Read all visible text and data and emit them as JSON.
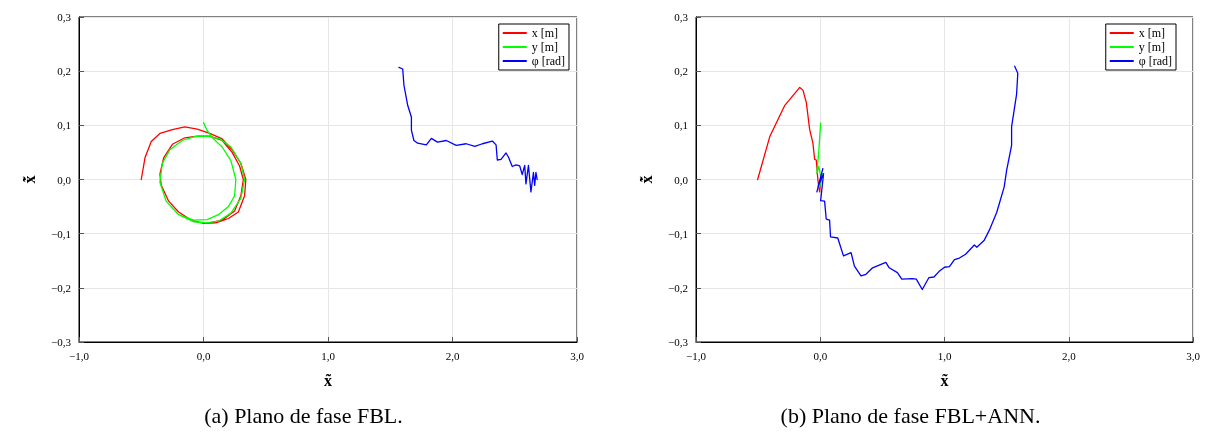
{
  "chart_data": [
    {
      "type": "line",
      "title": "(a) Plano de fase FBL.",
      "xlabel": "x̃",
      "ylabel": "x̃̇",
      "legend": "top right",
      "grid": true,
      "marker": "none",
      "line_style": "solid",
      "xlim": [
        -1,
        3
      ],
      "ylim": [
        -0.3,
        0.3
      ],
      "xticks": [
        {
          "value": -1,
          "label": "−1,0"
        },
        {
          "value": 0,
          "label": "0,0"
        },
        {
          "value": 1,
          "label": "1,0"
        },
        {
          "value": 2,
          "label": "2,0"
        },
        {
          "value": 3,
          "label": "3,0"
        }
      ],
      "yticks": [
        {
          "value": -0.3,
          "label": "−0,3"
        },
        {
          "value": -0.2,
          "label": "−0,2"
        },
        {
          "value": -0.1,
          "label": "−0,1"
        },
        {
          "value": 0,
          "label": "0,0"
        },
        {
          "value": 0.1,
          "label": "0,1"
        },
        {
          "value": 0.2,
          "label": "0,2"
        },
        {
          "value": 0.3,
          "label": "0,3"
        }
      ],
      "series": [
        {
          "name": "x [m]",
          "color": "#ff0000",
          "x": [
            -0.5,
            -0.47,
            -0.42,
            -0.35,
            -0.25,
            -0.15,
            -0.05,
            0.05,
            0.15,
            0.23,
            0.3,
            0.34,
            0.33,
            0.28,
            0.2,
            0.1,
            0,
            -0.1,
            -0.2,
            -0.28,
            -0.34,
            -0.35,
            -0.32,
            -0.25,
            -0.15,
            -0.05,
            0.05,
            0.15,
            0.23,
            0.29,
            0.32,
            0.3,
            0.25,
            0.15,
            0.05
          ],
          "values": [
            0,
            0.04,
            0.07,
            0.085,
            0.092,
            0.097,
            0.093,
            0.085,
            0.075,
            0.055,
            0.03,
            0,
            -0.03,
            -0.06,
            -0.072,
            -0.08,
            -0.081,
            -0.075,
            -0.06,
            -0.04,
            -0.01,
            0.01,
            0.04,
            0.065,
            0.077,
            0.08,
            0.08,
            0.072,
            0.05,
            0.025,
            0,
            -0.03,
            -0.058,
            -0.075,
            -0.08
          ]
        },
        {
          "name": "y [m]",
          "color": "#00ff00",
          "x": [
            0,
            0.03,
            0.08,
            0.15,
            0.22,
            0.26,
            0.25,
            0.2,
            0.12,
            0.03,
            -0.08,
            -0.2,
            -0.3,
            -0.35,
            -0.33,
            -0.27,
            -0.17,
            -0.07,
            0.03,
            0.13,
            0.22,
            0.3,
            0.33,
            0.3,
            0.22,
            0.12,
            0.02,
            -0.08,
            -0.2
          ],
          "values": [
            0.105,
            0.09,
            0.075,
            0.06,
            0.035,
            0,
            -0.03,
            -0.05,
            -0.065,
            -0.074,
            -0.075,
            -0.065,
            -0.04,
            -0.005,
            0.03,
            0.055,
            0.072,
            0.079,
            0.08,
            0.075,
            0.06,
            0.03,
            0,
            -0.035,
            -0.062,
            -0.077,
            -0.08,
            -0.078,
            -0.065
          ]
        },
        {
          "name": "φ [rad]",
          "color": "#0000ff",
          "x": [
            1.57,
            1.6,
            1.61,
            1.64,
            1.67,
            1.67,
            1.69,
            1.72,
            1.79,
            1.83,
            1.88,
            1.95,
            2.03,
            2.11,
            2.18,
            2.24,
            2.32,
            2.35,
            2.36,
            2.39,
            2.43,
            2.45,
            2.48,
            2.51,
            2.54,
            2.56,
            2.58,
            2.59,
            2.61,
            2.63,
            2.65,
            2.66,
            2.67,
            2.68
          ],
          "values": [
            0.207,
            0.204,
            0.174,
            0.137,
            0.115,
            0.091,
            0.072,
            0.067,
            0.064,
            0.076,
            0.069,
            0.072,
            0.063,
            0.066,
            0.061,
            0.066,
            0.071,
            0.064,
            0.036,
            0.037,
            0.049,
            0.041,
            0.024,
            0.027,
            0.025,
            0.009,
            0.026,
            -0.008,
            0.026,
            -0.023,
            0.013,
            -0.011,
            0.013,
            0
          ]
        }
      ]
    },
    {
      "type": "line",
      "title": "(b) Plano de fase FBL+ANN.",
      "xlabel": "x̃",
      "ylabel": "x̃̇",
      "legend": "top right",
      "grid": true,
      "marker": "none",
      "line_style": "solid",
      "xlim": [
        -1,
        3
      ],
      "ylim": [
        -0.3,
        0.3
      ],
      "xticks": [
        {
          "value": -1,
          "label": "−1,0"
        },
        {
          "value": 0,
          "label": "0,0"
        },
        {
          "value": 1,
          "label": "1,0"
        },
        {
          "value": 2,
          "label": "2,0"
        },
        {
          "value": 3,
          "label": "3,0"
        }
      ],
      "yticks": [
        {
          "value": -0.3,
          "label": "−0,3"
        },
        {
          "value": -0.2,
          "label": "−0,2"
        },
        {
          "value": -0.1,
          "label": "−0,1"
        },
        {
          "value": 0,
          "label": "0,0"
        },
        {
          "value": 0.1,
          "label": "0,1"
        },
        {
          "value": 0.2,
          "label": "0,2"
        },
        {
          "value": 0.3,
          "label": "0,3"
        }
      ],
      "series": [
        {
          "name": "x [m]",
          "color": "#ff0000",
          "x": [
            -0.504,
            -0.405,
            -0.285,
            -0.165,
            -0.139,
            -0.112,
            -0.085,
            -0.059,
            -0.045,
            -0.032,
            -0.019,
            -0.005,
            0.008
          ],
          "values": [
            0,
            0.08,
            0.137,
            0.17,
            0.165,
            0.142,
            0.092,
            0.067,
            0.037,
            0.036,
            -0.001,
            -0.023,
            0.005
          ]
        },
        {
          "name": "y [m]",
          "color": "#00ff00",
          "x": [
            0.003,
            -0.011,
            -0.027,
            -0.011,
            0.008,
            -0.005,
            0.016
          ],
          "values": [
            0.104,
            0.055,
            0.011,
            0.024,
            -0.001,
            -0.014,
            0.011
          ]
        },
        {
          "name": "φ [rad]",
          "color": "#0000ff",
          "x": [
            1.565,
            1.59,
            1.58,
            1.54,
            1.54,
            1.5,
            1.48,
            1.42,
            1.36,
            1.32,
            1.26,
            1.24,
            1.17,
            1.12,
            1.08,
            1.04,
            1.0,
            0.955,
            0.915,
            0.875,
            0.821,
            0.773,
            0.741,
            0.656,
            0.621,
            0.555,
            0.528,
            0.421,
            0.368,
            0.328,
            0.275,
            0.248,
            0.187,
            0.141,
            0.083,
            0.075,
            0.048,
            0.035,
            0.003,
            0.027,
            -0.019,
            0.021,
            -0.027
          ],
          "values": [
            0.209,
            0.196,
            0.157,
            0.097,
            0.063,
            0.017,
            -0.014,
            -0.061,
            -0.094,
            -0.112,
            -0.125,
            -0.121,
            -0.138,
            -0.145,
            -0.148,
            -0.161,
            -0.162,
            -0.17,
            -0.18,
            -0.181,
            -0.203,
            -0.184,
            -0.183,
            -0.184,
            -0.172,
            -0.163,
            -0.153,
            -0.163,
            -0.175,
            -0.178,
            -0.16,
            -0.135,
            -0.141,
            -0.108,
            -0.106,
            -0.075,
            -0.073,
            -0.04,
            -0.039,
            0.011,
            -0.014,
            0.02,
            -0.023
          ]
        }
      ]
    }
  ]
}
